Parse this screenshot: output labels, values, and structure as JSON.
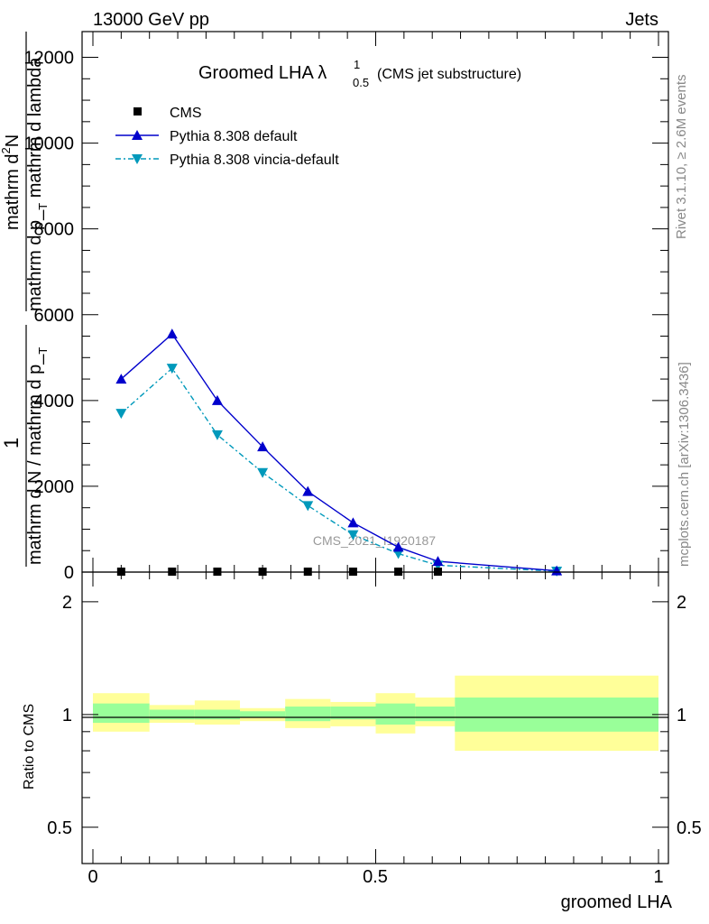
{
  "header": {
    "left": "13000 GeV pp",
    "right": "Jets"
  },
  "side": {
    "rivet": "Rivet 3.1.10, ≥ 2.6M events",
    "mcplots": "mcplots.cern.ch [arXiv:1306.3436]"
  },
  "watermark": "CMS_2021_I1920187",
  "title": {
    "main": "Groomed LHA λ",
    "sup": "1",
    "sub": "0.5",
    "note": "(CMS jet substructure)"
  },
  "ylabel_main": {
    "top_num": "1",
    "top_den": "mathrm d N / mathrm d p_",
    "top_den_sub": "T",
    "bot_num": "mathrm d",
    "bot_num_sup": "2",
    "bot_num_rest": "N",
    "bot_den": "mathrm d p_",
    "bot_den_sub": "T",
    "bot_den_rest": " mathrm d lambda"
  },
  "ylabel_ratio": "Ratio to CMS",
  "xlabel": "groomed LHA",
  "legend": {
    "cms": "CMS",
    "default": "Pythia 8.308 default",
    "vincia": "Pythia 8.308 vincia-default"
  },
  "main_ticks": [
    "0",
    "2000",
    "4000",
    "6000",
    "8000",
    "10000",
    "12000"
  ],
  "ratio_ticks": [
    "0.5",
    "1",
    "2"
  ],
  "x_ticks": [
    "0",
    "0.5",
    "1"
  ],
  "colors": {
    "default": "#0000cc",
    "vincia": "#0099bb",
    "band_inner": "#99ff99",
    "band_outer": "#ffff99"
  },
  "chart_data": {
    "type": "line",
    "x": [
      0.05,
      0.14,
      0.22,
      0.3,
      0.38,
      0.46,
      0.54,
      0.61,
      0.82
    ],
    "series": [
      {
        "name": "CMS",
        "marker": "square",
        "values": [
          0,
          0,
          0,
          0,
          0,
          0,
          0,
          0,
          0
        ]
      },
      {
        "name": "Pythia 8.308 default",
        "marker": "triangle-up",
        "values": [
          4500,
          5550,
          4000,
          2920,
          1880,
          1150,
          580,
          250,
          30
        ]
      },
      {
        "name": "Pythia 8.308 vincia-default",
        "marker": "triangle-down",
        "values": [
          3700,
          4750,
          3200,
          2320,
          1550,
          870,
          430,
          160,
          20
        ]
      }
    ],
    "xlim": [
      -0.04,
      1.0
    ],
    "ylim": [
      0,
      12600
    ],
    "ratio": {
      "ylim_log": [
        0.4,
        2.4
      ],
      "bins": [
        [
          0.0,
          0.1
        ],
        [
          0.1,
          0.18
        ],
        [
          0.18,
          0.26
        ],
        [
          0.26,
          0.34
        ],
        [
          0.34,
          0.42
        ],
        [
          0.42,
          0.5
        ],
        [
          0.5,
          0.57
        ],
        [
          0.57,
          0.64
        ],
        [
          0.64,
          1.0
        ]
      ],
      "inner": [
        [
          0.95,
          1.07
        ],
        [
          0.97,
          1.03
        ],
        [
          0.97,
          1.03
        ],
        [
          0.98,
          1.02
        ],
        [
          0.96,
          1.05
        ],
        [
          0.97,
          1.05
        ],
        [
          0.94,
          1.07
        ],
        [
          0.96,
          1.05
        ],
        [
          0.9,
          1.11
        ]
      ],
      "outer": [
        [
          0.9,
          1.14
        ],
        [
          0.95,
          1.06
        ],
        [
          0.94,
          1.09
        ],
        [
          0.96,
          1.04
        ],
        [
          0.92,
          1.1
        ],
        [
          0.93,
          1.08
        ],
        [
          0.89,
          1.14
        ],
        [
          0.93,
          1.11
        ],
        [
          0.8,
          1.27
        ]
      ]
    }
  }
}
